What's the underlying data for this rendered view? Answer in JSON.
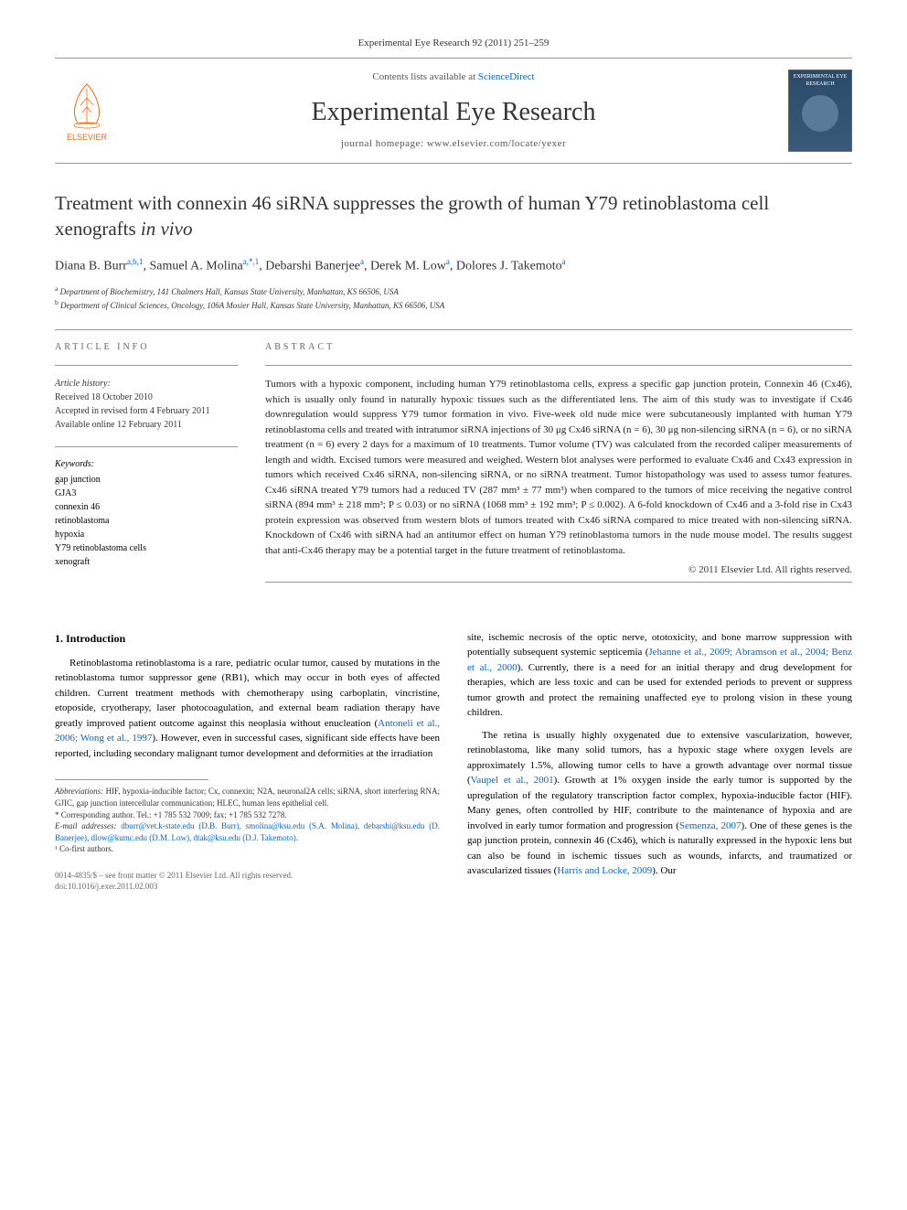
{
  "journal_ref": "Experimental Eye Research 92 (2011) 251–259",
  "header": {
    "contents_prefix": "Contents lists available at ",
    "contents_link": "ScienceDirect",
    "journal_name": "Experimental Eye Research",
    "homepage_prefix": "journal homepage: ",
    "homepage_url": "www.elsevier.com/locate/yexer",
    "elsevier_label": "ELSEVIER",
    "cover_text": "EXPERIMENTAL EYE RESEARCH"
  },
  "title_part1": "Treatment with connexin 46 siRNA suppresses the growth of human Y79 retinoblastoma cell xenografts ",
  "title_italic": "in vivo",
  "authors_html": "Diana B. Burr<sup>a,b,1</sup>, Samuel A. Molina<sup>a,*,1</sup>, Debarshi Banerjee<sup>a</sup>, Derek M. Low<sup>a</sup>, Dolores J. Takemoto<sup>a</sup>",
  "affiliations": {
    "a": "Department of Biochemistry, 141 Chalmers Hall, Kansas State University, Manhattan, KS 66506, USA",
    "b": "Department of Clinical Sciences, Oncology, 106A Mosier Hall, Kansas State University, Manhattan, KS 66506, USA"
  },
  "article_info_label": "ARTICLE INFO",
  "abstract_label": "ABSTRACT",
  "history_label": "Article history:",
  "history": {
    "received": "Received 18 October 2010",
    "accepted": "Accepted in revised form 4 February 2011",
    "online": "Available online 12 February 2011"
  },
  "keywords_label": "Keywords:",
  "keywords": [
    "gap junction",
    "GJA3",
    "connexin 46",
    "retinoblastoma",
    "hypoxia",
    "Y79 retinoblastoma cells",
    "xenograft"
  ],
  "abstract": "Tumors with a hypoxic component, including human Y79 retinoblastoma cells, express a specific gap junction protein, Connexin 46 (Cx46), which is usually only found in naturally hypoxic tissues such as the differentiated lens. The aim of this study was to investigate if Cx46 downregulation would suppress Y79 tumor formation in vivo. Five-week old nude mice were subcutaneously implanted with human Y79 retinoblastoma cells and treated with intratumor siRNA injections of 30 μg Cx46 siRNA (n = 6), 30 μg non-silencing siRNA (n = 6), or no siRNA treatment (n = 6) every 2 days for a maximum of 10 treatments. Tumor volume (TV) was calculated from the recorded caliper measurements of length and width. Excised tumors were measured and weighed. Western blot analyses were performed to evaluate Cx46 and Cx43 expression in tumors which received Cx46 siRNA, non-silencing siRNA, or no siRNA treatment. Tumor histopathology was used to assess tumor features. Cx46 siRNA treated Y79 tumors had a reduced TV (287 mm³ ± 77 mm³) when compared to the tumors of mice receiving the negative control siRNA (894 mm³ ± 218 mm³; P ≤ 0.03) or no siRNA (1068 mm³ ± 192 mm³; P ≤ 0.002). A 6-fold knockdown of Cx46 and a 3-fold rise in Cx43 protein expression was observed from western blots of tumors treated with Cx46 siRNA compared to mice treated with non-silencing siRNA. Knockdown of Cx46 with siRNA had an antitumor effect on human Y79 retinoblastoma tumors in the nude mouse model. The results suggest that anti-Cx46 therapy may be a potential target in the future treatment of retinoblastoma.",
  "copyright": "© 2011 Elsevier Ltd. All rights reserved.",
  "intro_heading": "1. Introduction",
  "intro_p1": "Retinoblastoma retinoblastoma is a rare, pediatric ocular tumor, caused by mutations in the retinoblastoma tumor suppressor gene (RB1), which may occur in both eyes of affected children. Current treatment methods with chemotherapy using carboplatin, vincristine, etoposide, cryotherapy, laser photocoagulation, and external beam radiation therapy have greatly improved patient outcome against this neoplasia without enucleation (",
  "intro_p1_cite": "Antoneli et al., 2006; Wong et al., 1997",
  "intro_p1_end": "). However, even in successful cases, significant side effects have been reported, including secondary malignant tumor development and deformities at the irradiation",
  "intro_p2_start": "site, ischemic necrosis of the optic nerve, ototoxicity, and bone marrow suppression with potentially subsequent systemic septicemia (",
  "intro_p2_cite": "Jehanne et al., 2009; Abramson et al., 2004; Benz et al., 2000",
  "intro_p2_end": "). Currently, there is a need for an initial therapy and drug development for therapies, which are less toxic and can be used for extended periods to prevent or suppress tumor growth and protect the remaining unaffected eye to prolong vision in these young children.",
  "intro_p3_start": "The retina is usually highly oxygenated due to extensive vascularization, however, retinoblastoma, like many solid tumors, has a hypoxic stage where oxygen levels are approximately 1.5%, allowing tumor cells to have a growth advantage over normal tissue (",
  "intro_p3_cite1": "Vaupel et al., 2001",
  "intro_p3_mid": "). Growth at 1% oxygen inside the early tumor is supported by the upregulation of the regulatory transcription factor complex, hypoxia-inducible factor (HIF). Many genes, often controlled by HIF, contribute to the maintenance of hypoxia and are involved in early tumor formation and progression (",
  "intro_p3_cite2": "Semenza, 2007",
  "intro_p3_mid2": "). One of these genes is the gap junction protein, connexin 46 (Cx46), which is naturally expressed in the hypoxic lens but can also be found in ischemic tissues such as wounds, infarcts, and traumatized or avascularized tissues (",
  "intro_p3_cite3": "Harris and Locke, 2009",
  "intro_p3_end": "). Our",
  "footnotes": {
    "abbrev_label": "Abbreviations:",
    "abbrev_text": " HIF, hypoxia-inducible factor; Cx, connexin; N2A, neuronal2A cells; siRNA, short interfering RNA; GJIC, gap junction intercellular communication; HLEC, human lens epithelial cell.",
    "corr_label": "* Corresponding author. Tel.: +1 785 532 7009; fax: +1 785 532 7278.",
    "email_label": "E-mail addresses:",
    "emails": " dburr@vet.k-state.edu (D.B. Burr), smolina@ksu.edu (S.A. Molina), debarshi@ksu.edu (D. Banerjee), dlow@kumc.edu (D.M. Low), dtak@ksu.edu (D.J. Takemoto).",
    "cofirst": "¹ Co-first authors."
  },
  "footer": {
    "issn": "0014-4835/$ – see front matter © 2011 Elsevier Ltd. All rights reserved.",
    "doi": "doi:10.1016/j.exer.2011.02.003"
  },
  "colors": {
    "link": "#0066cc",
    "elsevier_orange": "#ff6600",
    "text": "#333333",
    "border": "#999999"
  }
}
